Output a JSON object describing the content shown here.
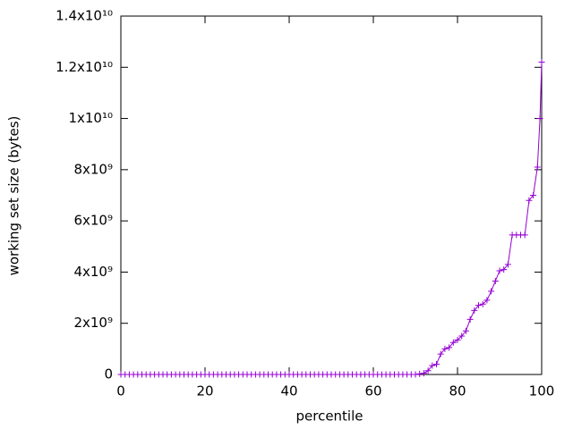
{
  "chart_data": {
    "type": "line",
    "xlabel": "percentile",
    "ylabel": "working set size (bytes)",
    "x": [
      0,
      1,
      2,
      3,
      4,
      5,
      6,
      7,
      8,
      9,
      10,
      11,
      12,
      13,
      14,
      15,
      16,
      17,
      18,
      19,
      20,
      21,
      22,
      23,
      24,
      25,
      26,
      27,
      28,
      29,
      30,
      31,
      32,
      33,
      34,
      35,
      36,
      37,
      38,
      39,
      40,
      41,
      42,
      43,
      44,
      45,
      46,
      47,
      48,
      49,
      50,
      51,
      52,
      53,
      54,
      55,
      56,
      57,
      58,
      59,
      60,
      61,
      62,
      63,
      64,
      65,
      66,
      67,
      68,
      69,
      70,
      71,
      72,
      73,
      74,
      75,
      76,
      77,
      78,
      79,
      80,
      81,
      82,
      83,
      84,
      85,
      86,
      87,
      88,
      89,
      90,
      91,
      92,
      93,
      94,
      95,
      96,
      97,
      98,
      99,
      99.6,
      100
    ],
    "series": [
      {
        "color": "#9400d3",
        "values": [
          0,
          0,
          0,
          0,
          0,
          0,
          0,
          0,
          0,
          0,
          0,
          0,
          0,
          0,
          0,
          0,
          0,
          0,
          0,
          0,
          0,
          0,
          0,
          0,
          0,
          0,
          0,
          0,
          0,
          0,
          0,
          0,
          0,
          0,
          0,
          0,
          0,
          0,
          0,
          0,
          0,
          0,
          0,
          0,
          0,
          0,
          0,
          0,
          0,
          0,
          0,
          0,
          0,
          0,
          0,
          0,
          0,
          0,
          0,
          0,
          0,
          0,
          0,
          0,
          0,
          0,
          0,
          0,
          0,
          0,
          0,
          20000000,
          50000000,
          150000000,
          350000000,
          400000000,
          800000000,
          1000000000,
          1050000000,
          1250000000,
          1350000000,
          1500000000,
          1700000000,
          2150000000,
          2500000000,
          2700000000,
          2750000000,
          2900000000,
          3250000000,
          3650000000,
          4050000000,
          4100000000,
          4300000000,
          5450000000,
          5450000000,
          5450000000,
          5450000000,
          6800000000,
          7000000000,
          8100000000,
          10000000000,
          12200000000
        ]
      }
    ],
    "xlim": [
      0,
      100
    ],
    "xticks": [
      0,
      20,
      40,
      60,
      80,
      100
    ],
    "ylim": [
      0,
      14000000000
    ],
    "yticks": [
      0,
      {
        "value": 2000000000,
        "label": "2x10⁹"
      },
      {
        "value": 4000000000,
        "label": "4x10⁹"
      },
      {
        "value": 6000000000,
        "label": "6x10⁹"
      },
      {
        "value": 8000000000,
        "label": "8x10⁹"
      },
      {
        "value": 10000000000,
        "label": "1x10¹⁰"
      },
      {
        "value": 12000000000,
        "label": "1.2x10¹⁰"
      },
      {
        "value": 14000000000,
        "label": "1.4x10¹⁰"
      }
    ],
    "grid": false
  }
}
